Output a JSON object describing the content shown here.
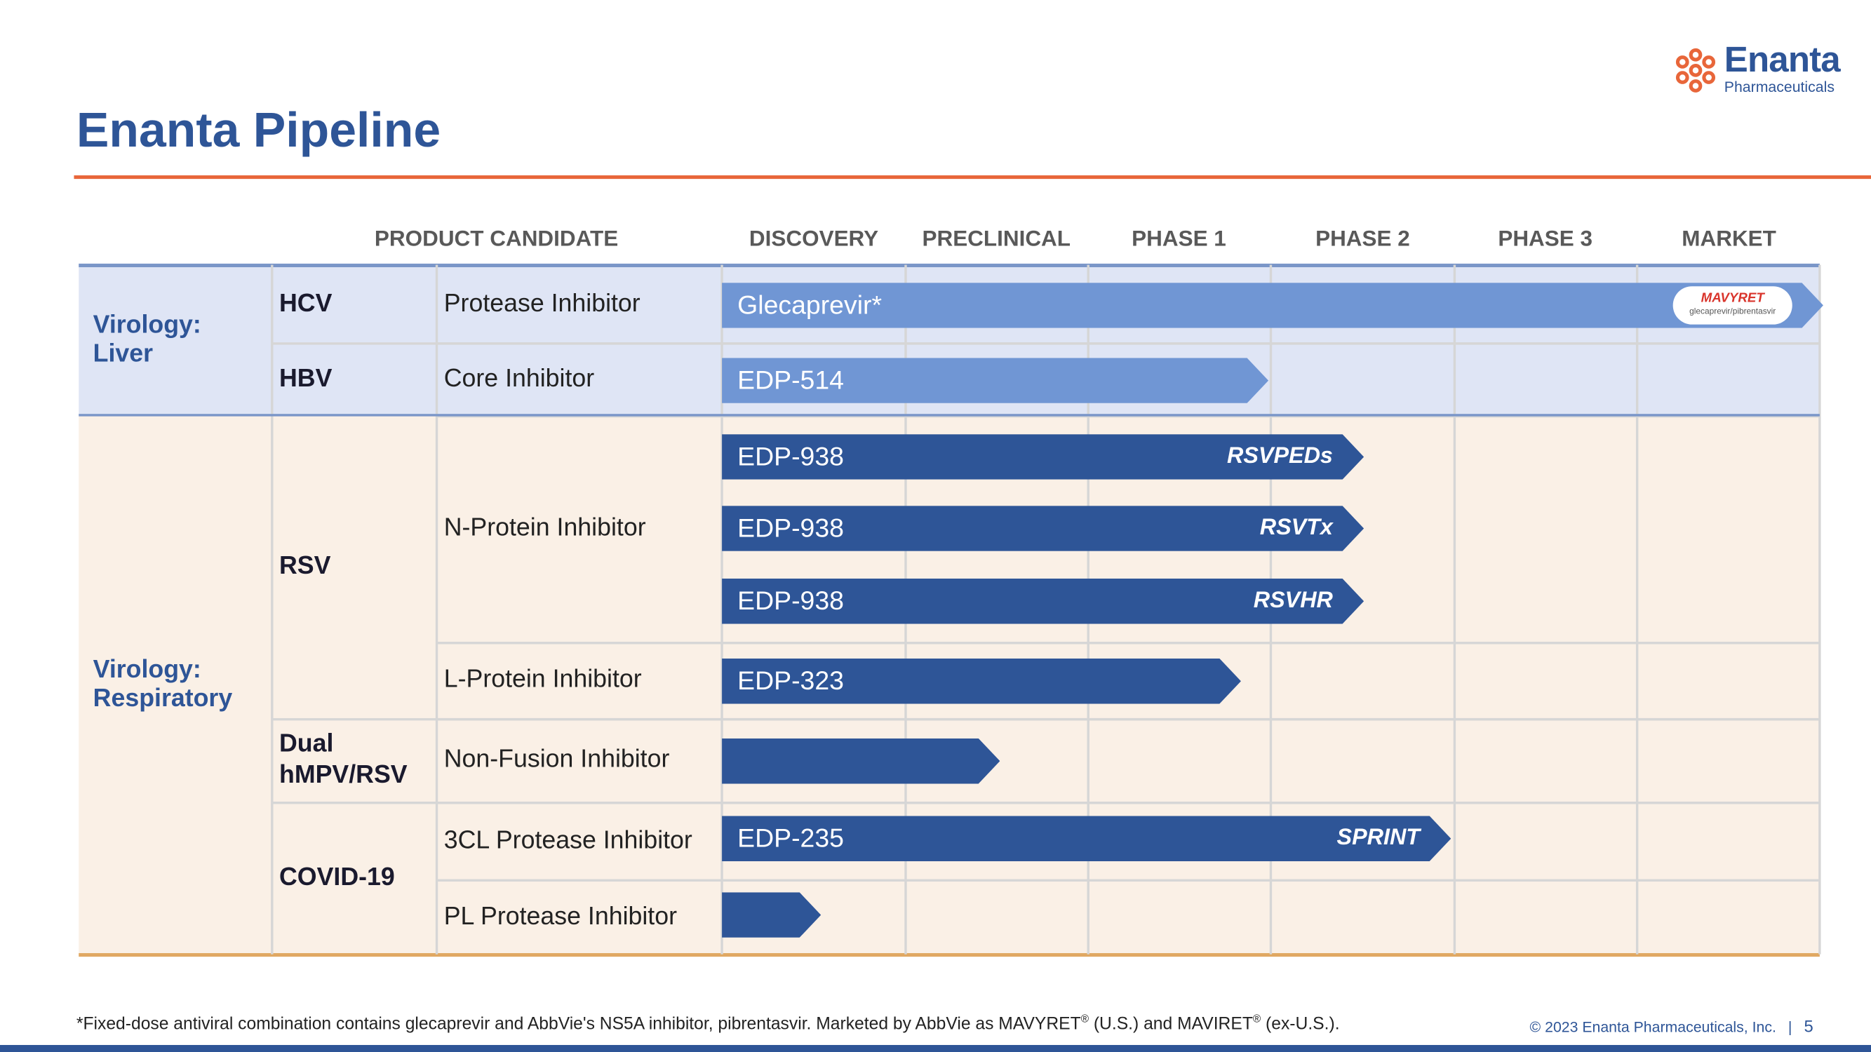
{
  "header": {
    "title": "Enanta Pipeline",
    "logo": {
      "name": "Enanta",
      "sub": "Pharmaceuticals"
    }
  },
  "table": {
    "columns": [
      "PRODUCT CANDIDATE",
      "DISCOVERY",
      "PRECLINICAL",
      "PHASE 1",
      "PHASE 2",
      "PHASE 3",
      "MARKET"
    ],
    "sections": [
      {
        "area": "Virology: Liver",
        "diseases": [
          {
            "name": "HCV",
            "targets": [
              {
                "name": "Protease Inhibitor",
                "programs": [
                  {
                    "name": "Glecaprevir*",
                    "badge": {
                      "brand": "MAVYRET",
                      "generic": "glecaprevir/pibrentasvir"
                    }
                  }
                ]
              }
            ]
          },
          {
            "name": "HBV",
            "targets": [
              {
                "name": "Core Inhibitor",
                "programs": [
                  {
                    "name": "EDP-514"
                  }
                ]
              }
            ]
          }
        ]
      },
      {
        "area": "Virology: Respiratory",
        "diseases": [
          {
            "name": "RSV",
            "targets": [
              {
                "name": "N-Protein Inhibitor",
                "programs": [
                  {
                    "name": "EDP-938",
                    "study": "RSVPEDs"
                  },
                  {
                    "name": "EDP-938",
                    "study": "RSVTx"
                  },
                  {
                    "name": "EDP-938",
                    "study": "RSVHR"
                  }
                ]
              },
              {
                "name": "L-Protein Inhibitor",
                "programs": [
                  {
                    "name": "EDP-323"
                  }
                ]
              }
            ]
          },
          {
            "name": "Dual hMPV/RSV",
            "targets": [
              {
                "name": "Non-Fusion Inhibitor",
                "programs": [
                  {}
                ]
              }
            ]
          },
          {
            "name": "COVID-19",
            "targets": [
              {
                "name": "3CL Protease Inhibitor",
                "programs": [
                  {
                    "name": "EDP-235",
                    "study": "SPRINT"
                  }
                ]
              },
              {
                "name": "PL Protease Inhibitor",
                "programs": [
                  {}
                ]
              }
            ]
          }
        ]
      }
    ]
  },
  "footer": {
    "footnote": [
      "*Fixed-dose antiviral combination contains glecaprevir and AbbVie's NS5A inhibitor, pibrentasvir. Marketed by AbbVie as MAVYRET",
      "®",
      " (U.S.) and MAVIRET",
      "®",
      " (ex-U.S.)."
    ],
    "copyright": "© 2023  Enanta Pharmaceuticals, Inc.",
    "separator": "|",
    "page": "5"
  }
}
